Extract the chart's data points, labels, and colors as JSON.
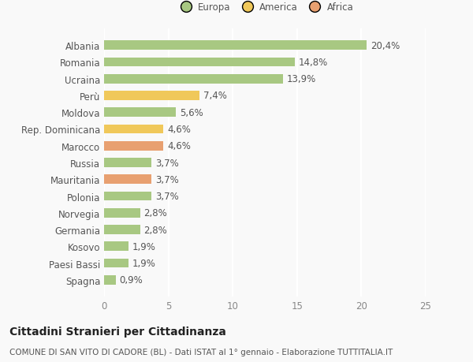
{
  "categories": [
    "Albania",
    "Romania",
    "Ucraina",
    "Perù",
    "Moldova",
    "Rep. Dominicana",
    "Marocco",
    "Russia",
    "Mauritania",
    "Polonia",
    "Norvegia",
    "Germania",
    "Kosovo",
    "Paesi Bassi",
    "Spagna"
  ],
  "values": [
    20.4,
    14.8,
    13.9,
    7.4,
    5.6,
    4.6,
    4.6,
    3.7,
    3.7,
    3.7,
    2.8,
    2.8,
    1.9,
    1.9,
    0.9
  ],
  "continents": [
    "Europa",
    "Europa",
    "Europa",
    "America",
    "Europa",
    "America",
    "Africa",
    "Europa",
    "Africa",
    "Europa",
    "Europa",
    "Europa",
    "Europa",
    "Europa",
    "Europa"
  ],
  "colors": {
    "Europa": "#a8c882",
    "America": "#f0c85a",
    "Africa": "#e8a070"
  },
  "xlim": [
    0,
    25
  ],
  "xticks": [
    0,
    5,
    10,
    15,
    20,
    25
  ],
  "title": "Cittadini Stranieri per Cittadinanza",
  "subtitle": "COMUNE DI SAN VITO DI CADORE (BL) - Dati ISTAT al 1° gennaio - Elaborazione TUTTITALIA.IT",
  "background_color": "#f9f9f9",
  "bar_height": 0.55,
  "label_fontsize": 8.5,
  "tick_fontsize": 8.5,
  "title_fontsize": 10,
  "subtitle_fontsize": 7.5,
  "legend_order": [
    "Europa",
    "America",
    "Africa"
  ]
}
